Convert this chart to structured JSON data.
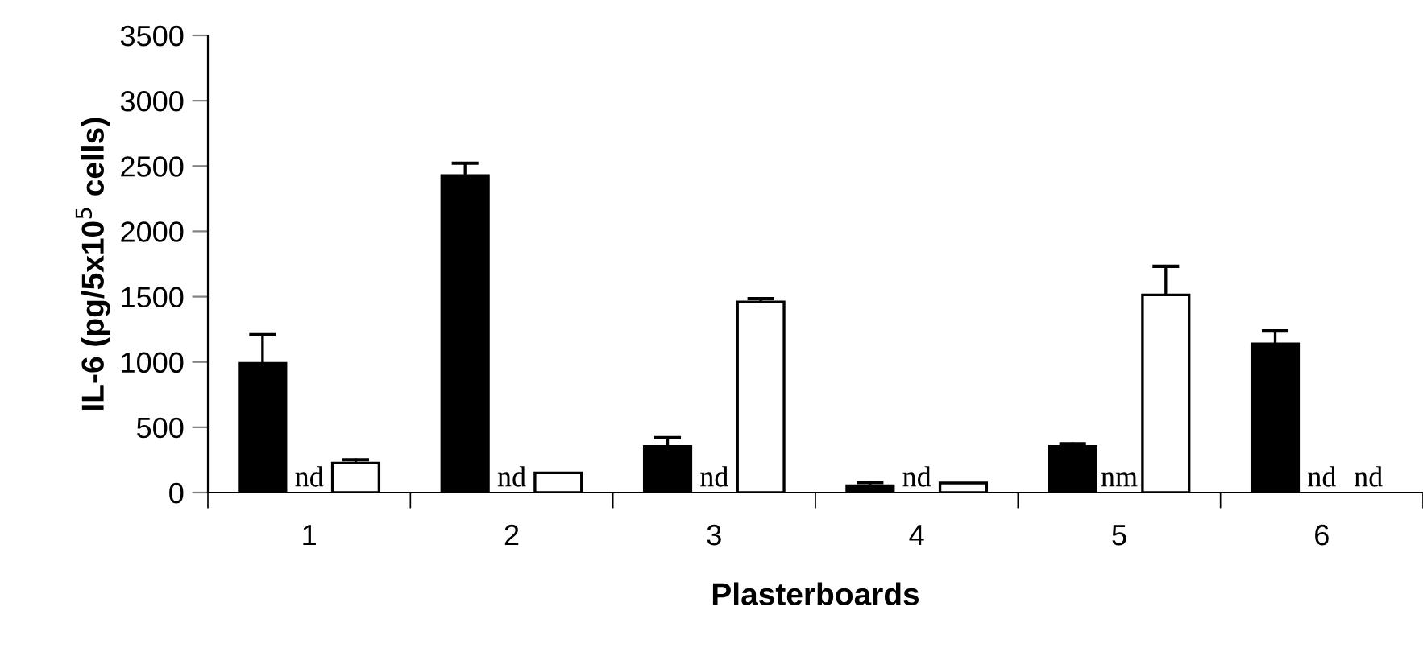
{
  "chart_data": {
    "type": "bar",
    "xlabel": "Plasterboards",
    "ylabel": "IL-6 (pg/5x10$^{5}$ cells)",
    "categories": [
      "1",
      "2",
      "3",
      "4",
      "5",
      "6"
    ],
    "series": [
      {
        "color": "#000000",
        "values": [
          990,
          2427,
          354,
          53,
          354,
          1139
        ],
        "errors": [
          [
            990,
            1209
          ],
          [
            2427,
            2522
          ],
          [
            354,
            420
          ],
          [
            53,
            78
          ],
          [
            354,
            374
          ],
          [
            1139,
            1238
          ]
        ]
      },
      {
        "values": [
          null,
          null,
          null,
          null,
          null,
          null
        ],
        "value_labels": [
          "nd",
          "nd",
          "nd",
          "nd",
          "nm",
          "nd"
        ]
      },
      {
        "color": "#ffffff",
        "values": [
          226,
          152,
          1460,
          74,
          1514,
          null
        ],
        "errors": [
          [
            226,
            251
          ],
          null,
          [
            1460,
            1485
          ],
          null,
          [
            1514,
            1732
          ],
          null
        ],
        "value_labels": [
          null,
          null,
          null,
          null,
          null,
          "nd"
        ]
      }
    ],
    "ylim": [
      0,
      3500
    ],
    "yticks": [
      0,
      500,
      1000,
      1500,
      2000,
      2500,
      3000,
      3500
    ],
    "grid": false,
    "legend": false
  }
}
